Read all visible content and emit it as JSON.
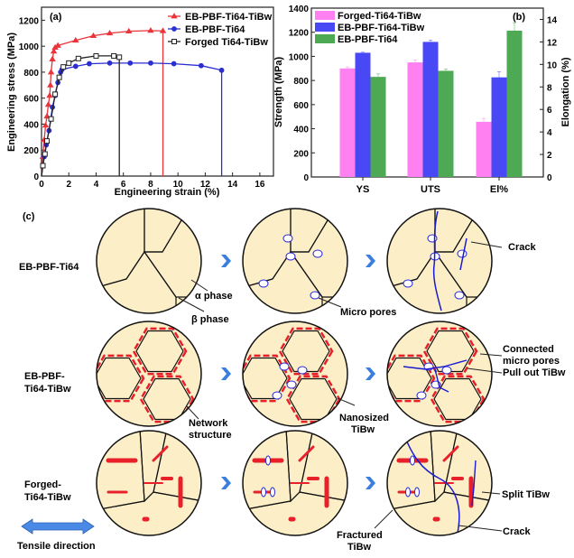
{
  "chart_data": [
    {
      "panel": "(a)",
      "type": "line",
      "xlabel": "Engineering strain (%)",
      "ylabel": "Engineering stress (MPa)",
      "xlim": [
        0,
        17
      ],
      "ylim": [
        0,
        1300
      ],
      "xticks": [
        0,
        2,
        4,
        6,
        8,
        10,
        12,
        14,
        16
      ],
      "yticks": [
        0,
        200,
        400,
        600,
        800,
        1000,
        1200
      ],
      "grid": false,
      "legend_position": "top-right",
      "series": [
        {
          "name": "EB-PBF-Ti64-TiBw",
          "color": "#e8343a",
          "marker": "triangle",
          "points": [
            [
              0,
              0
            ],
            [
              0.1,
              150
            ],
            [
              0.2,
              280
            ],
            [
              0.3,
              390
            ],
            [
              0.4,
              460
            ],
            [
              0.5,
              550
            ],
            [
              0.6,
              620
            ],
            [
              0.65,
              700
            ],
            [
              0.7,
              800
            ],
            [
              0.8,
              900
            ],
            [
              0.9,
              960
            ],
            [
              1.0,
              990
            ],
            [
              1.2,
              1005
            ],
            [
              2.5,
              1045
            ],
            [
              3.8,
              1080
            ],
            [
              5.0,
              1100
            ],
            [
              6.4,
              1115
            ],
            [
              8.0,
              1120
            ],
            [
              8.9,
              1118
            ],
            [
              8.9,
              0
            ]
          ],
          "fracture_strain": 8.9,
          "uts": 1120
        },
        {
          "name": "EB-PBF-Ti64",
          "color": "#2b2fd0",
          "marker": "circle",
          "points": [
            [
              0,
              0
            ],
            [
              0.1,
              80
            ],
            [
              0.2,
              150
            ],
            [
              0.35,
              240
            ],
            [
              0.55,
              350
            ],
            [
              0.8,
              530
            ],
            [
              1.0,
              620
            ],
            [
              1.2,
              720
            ],
            [
              1.4,
              800
            ],
            [
              1.5,
              820
            ],
            [
              2.5,
              845
            ],
            [
              3.5,
              865
            ],
            [
              5.0,
              870
            ],
            [
              6.5,
              870
            ],
            [
              8.0,
              870
            ],
            [
              9.7,
              865
            ],
            [
              11.7,
              850
            ],
            [
              13.2,
              815
            ],
            [
              13.2,
              0
            ]
          ],
          "fracture_strain": 13.2,
          "uts": 870
        },
        {
          "name": "Forged Ti64-TiBw",
          "color": "#222222",
          "marker": "square",
          "points": [
            [
              0,
              0
            ],
            [
              0.1,
              80
            ],
            [
              0.25,
              170
            ],
            [
              0.4,
              270
            ],
            [
              0.7,
              440
            ],
            [
              1.0,
              630
            ],
            [
              1.3,
              760
            ],
            [
              1.6,
              840
            ],
            [
              2.0,
              870
            ],
            [
              2.7,
              905
            ],
            [
              4.0,
              925
            ],
            [
              5.3,
              925
            ],
            [
              5.7,
              915
            ],
            [
              5.7,
              0
            ]
          ],
          "fracture_strain": 5.7,
          "uts": 925
        }
      ]
    },
    {
      "panel": "(b)",
      "type": "bar",
      "categories": [
        "YS",
        "UTS",
        "El%"
      ],
      "ylabel": "Strength (MPa)",
      "y2label": "Elongation (%)",
      "ylim": [
        0,
        1400
      ],
      "y2lim": [
        0,
        15
      ],
      "yticks": [
        0,
        200,
        400,
        600,
        800,
        1000,
        1200,
        1400
      ],
      "y2ticks": [
        0,
        2,
        4,
        6,
        8,
        10,
        12,
        14
      ],
      "legend_position": "top-left",
      "note": "YS and UTS on left axis (MPa); El% on right axis (%)",
      "series": [
        {
          "name": "Forged-Ti64-TiBw",
          "color": "#ff80f0",
          "values": [
            900,
            950,
            4.9
          ],
          "errors": [
            12,
            20,
            0.3
          ]
        },
        {
          "name": "EB-PBF-Ti64-TiBw",
          "color": "#4848f5",
          "values": [
            1030,
            1120,
            8.85
          ],
          "errors": [
            5,
            15,
            0.5
          ]
        },
        {
          "name": "EB-PBF-Ti64",
          "color": "#4ea955",
          "values": [
            830,
            880,
            13.0
          ],
          "errors": [
            25,
            15,
            0.7
          ]
        }
      ]
    }
  ],
  "diagram": {
    "panel": "(c)",
    "rows": [
      {
        "label": "EB-PBF-Ti64",
        "annotations": [
          "α phase",
          "β phase",
          "Micro pores",
          "Crack"
        ]
      },
      {
        "label_lines": [
          "EB-PBF-",
          "Ti64-TiBw"
        ],
        "annotations": [
          "Network",
          "structure",
          "Nanosized",
          "TiBw",
          "Connected",
          "micro pores",
          "Pull out TiBw"
        ]
      },
      {
        "label_lines": [
          "Forged-",
          "Ti64-TiBw"
        ],
        "annotations": [
          "Fractured",
          "TiBw",
          "Split TiBw",
          "Crack"
        ]
      }
    ],
    "tensile_label": "Tensile direction",
    "colors": {
      "grain_fill": "#fcefc8",
      "tibw": "#e8202a",
      "crack": "#1a1ad0",
      "pore": "#2a2ad8",
      "arrow": "#3a7fe0"
    }
  }
}
